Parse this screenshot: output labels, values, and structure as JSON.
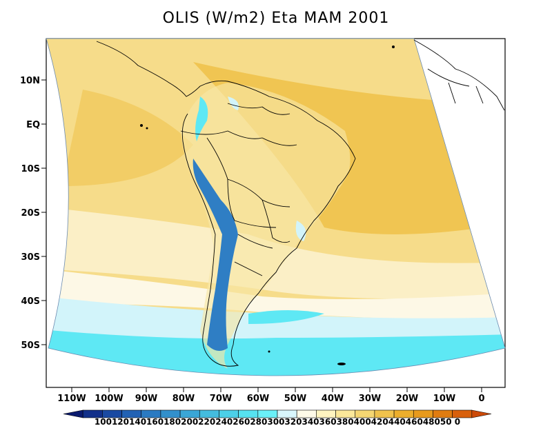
{
  "title": "OLIS (W/m2) Eta MAM 2001",
  "lat_labels": [
    "10N",
    "EQ",
    "10S",
    "20S",
    "30S",
    "40S",
    "50S"
  ],
  "lon_labels": [
    "110W",
    "100W",
    "90W",
    "80W",
    "70W",
    "60W",
    "50W",
    "40W",
    "30W",
    "20W",
    "10W",
    "0"
  ],
  "colorbar": {
    "levels": [
      100,
      120,
      140,
      160,
      180,
      200,
      220,
      240,
      260,
      280,
      300,
      320,
      340,
      360,
      380,
      400,
      420,
      440,
      460,
      480,
      500
    ],
    "colors": [
      "#0a1a6e",
      "#12308a",
      "#1a4aa2",
      "#2262b4",
      "#2a7ac2",
      "#3290cc",
      "#3aa6d6",
      "#44bcde",
      "#4cd0e8",
      "#56e2f0",
      "#6af0f8",
      "#d8f6fc",
      "#fefae8",
      "#fff4c0",
      "#fbe89a",
      "#f5d672",
      "#f0c24c",
      "#ecae2c",
      "#e89a1c",
      "#e07c10",
      "#d8600c",
      "#cc4a08"
    ],
    "label_text": "10012014016018020022024026028030032034036038040042044046048050 0"
  },
  "colors": {
    "ocean_warm": "#f2cd66",
    "ocean_mid": "#f6dc8a",
    "ocean_light": "#fbefc6",
    "ocean_pale": "#fdf8e6",
    "cool_light": "#d2f4fa",
    "cool": "#5ee8f4",
    "andes": "#2f7ec4"
  }
}
